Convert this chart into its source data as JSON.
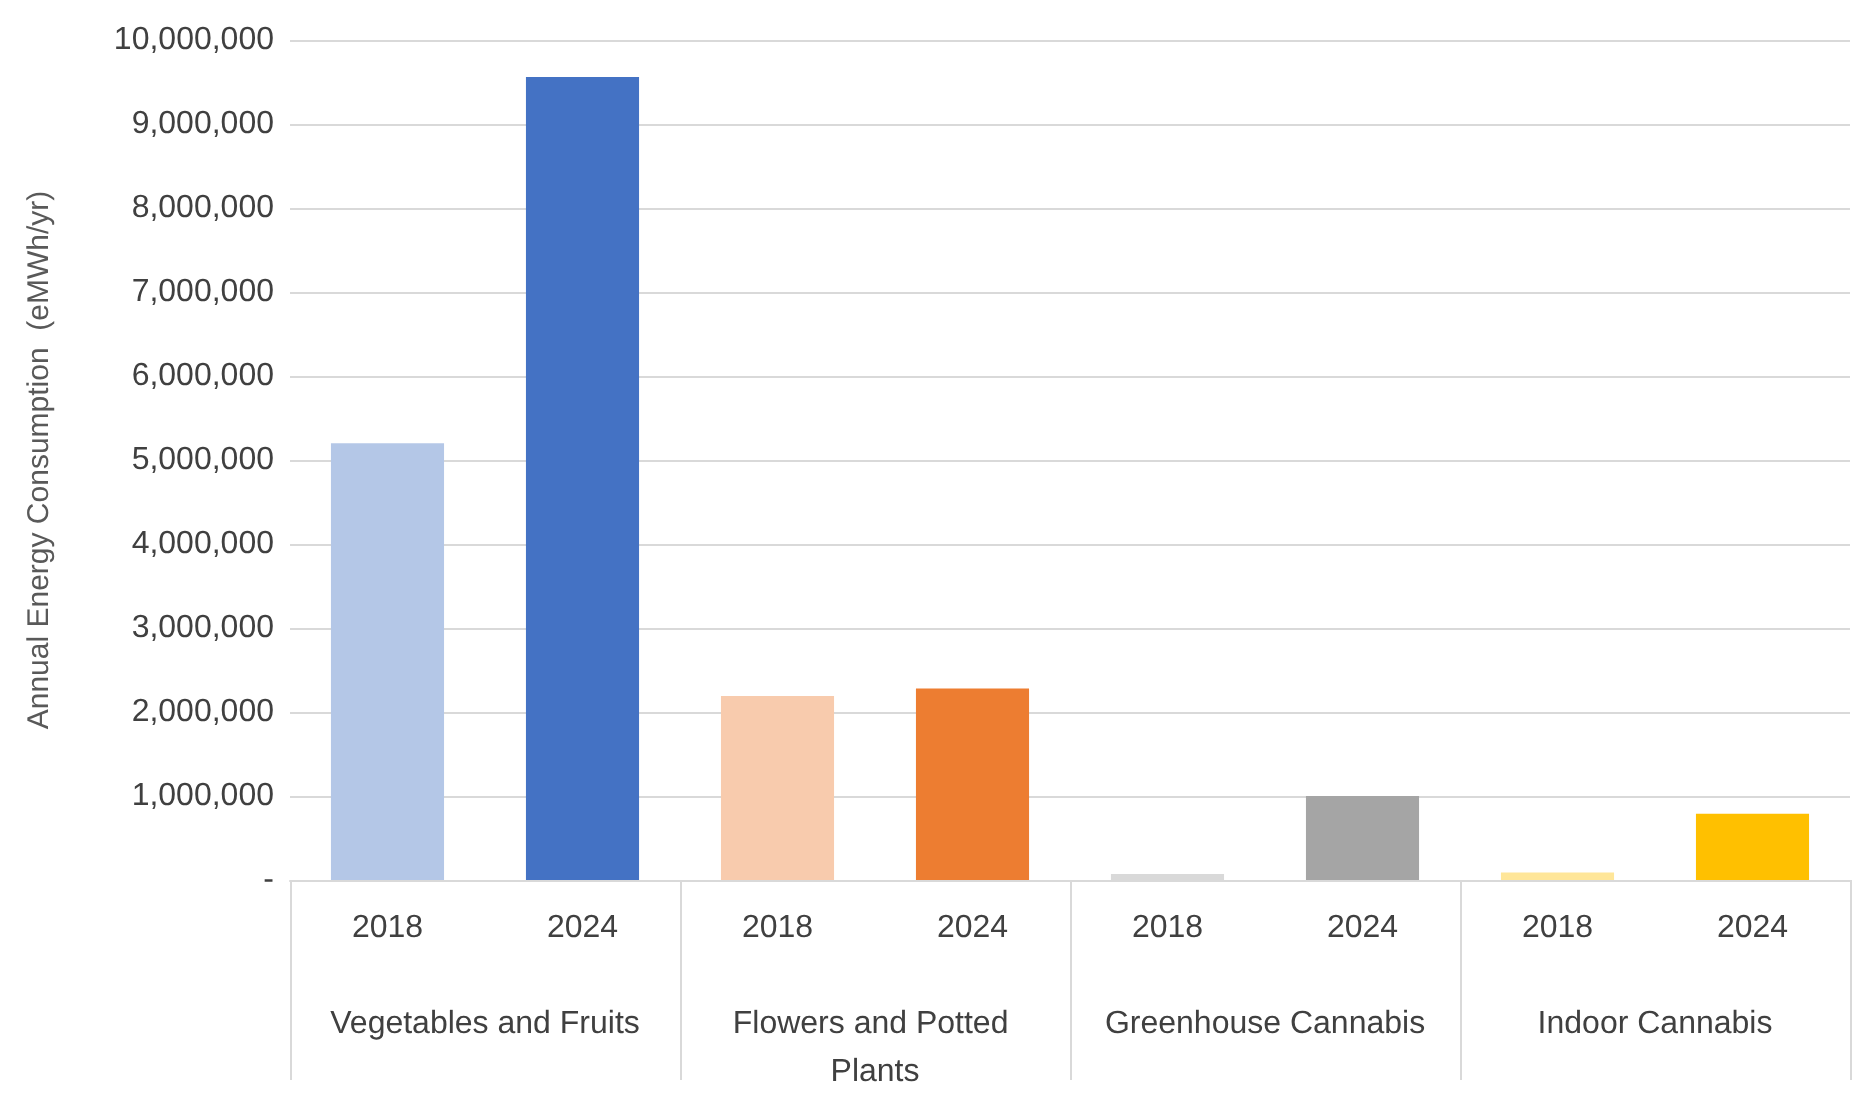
{
  "chart_data": {
    "type": "bar",
    "ylabel": "Annual Energy Consumption  (eMWh/yr)",
    "categories": [
      "2018",
      "2024",
      "2018",
      "2024",
      "2018",
      "2024",
      "2018",
      "2024"
    ],
    "values": [
      5200000,
      9560000,
      2190000,
      2280000,
      70000,
      1000000,
      90000,
      790000
    ],
    "colors": [
      "#b4c7e7",
      "#4472c4",
      "#f8cbad",
      "#ed7d31",
      "#d9d9d9",
      "#a5a5a5",
      "#ffe699",
      "#ffc000"
    ],
    "annotations": [
      "Vegetables and Fruits",
      "Flowers and Potted Plants",
      "Greenhouse Cannabis",
      "Indoor Cannabis"
    ],
    "ylim": [
      0,
      10000000
    ],
    "yticks": [
      {
        "value": 0,
        "label": "-"
      },
      {
        "value": 1000000,
        "label": "1,000,000"
      },
      {
        "value": 2000000,
        "label": "2,000,000"
      },
      {
        "value": 3000000,
        "label": "3,000,000"
      },
      {
        "value": 4000000,
        "label": "4,000,000"
      },
      {
        "value": 5000000,
        "label": "5,000,000"
      },
      {
        "value": 6000000,
        "label": "6,000,000"
      },
      {
        "value": 7000000,
        "label": "7,000,000"
      },
      {
        "value": 8000000,
        "label": "8,000,000"
      },
      {
        "value": 9000000,
        "label": "9,000,000"
      },
      {
        "value": 10000000,
        "label": "10,000,000"
      }
    ],
    "grid": true
  }
}
